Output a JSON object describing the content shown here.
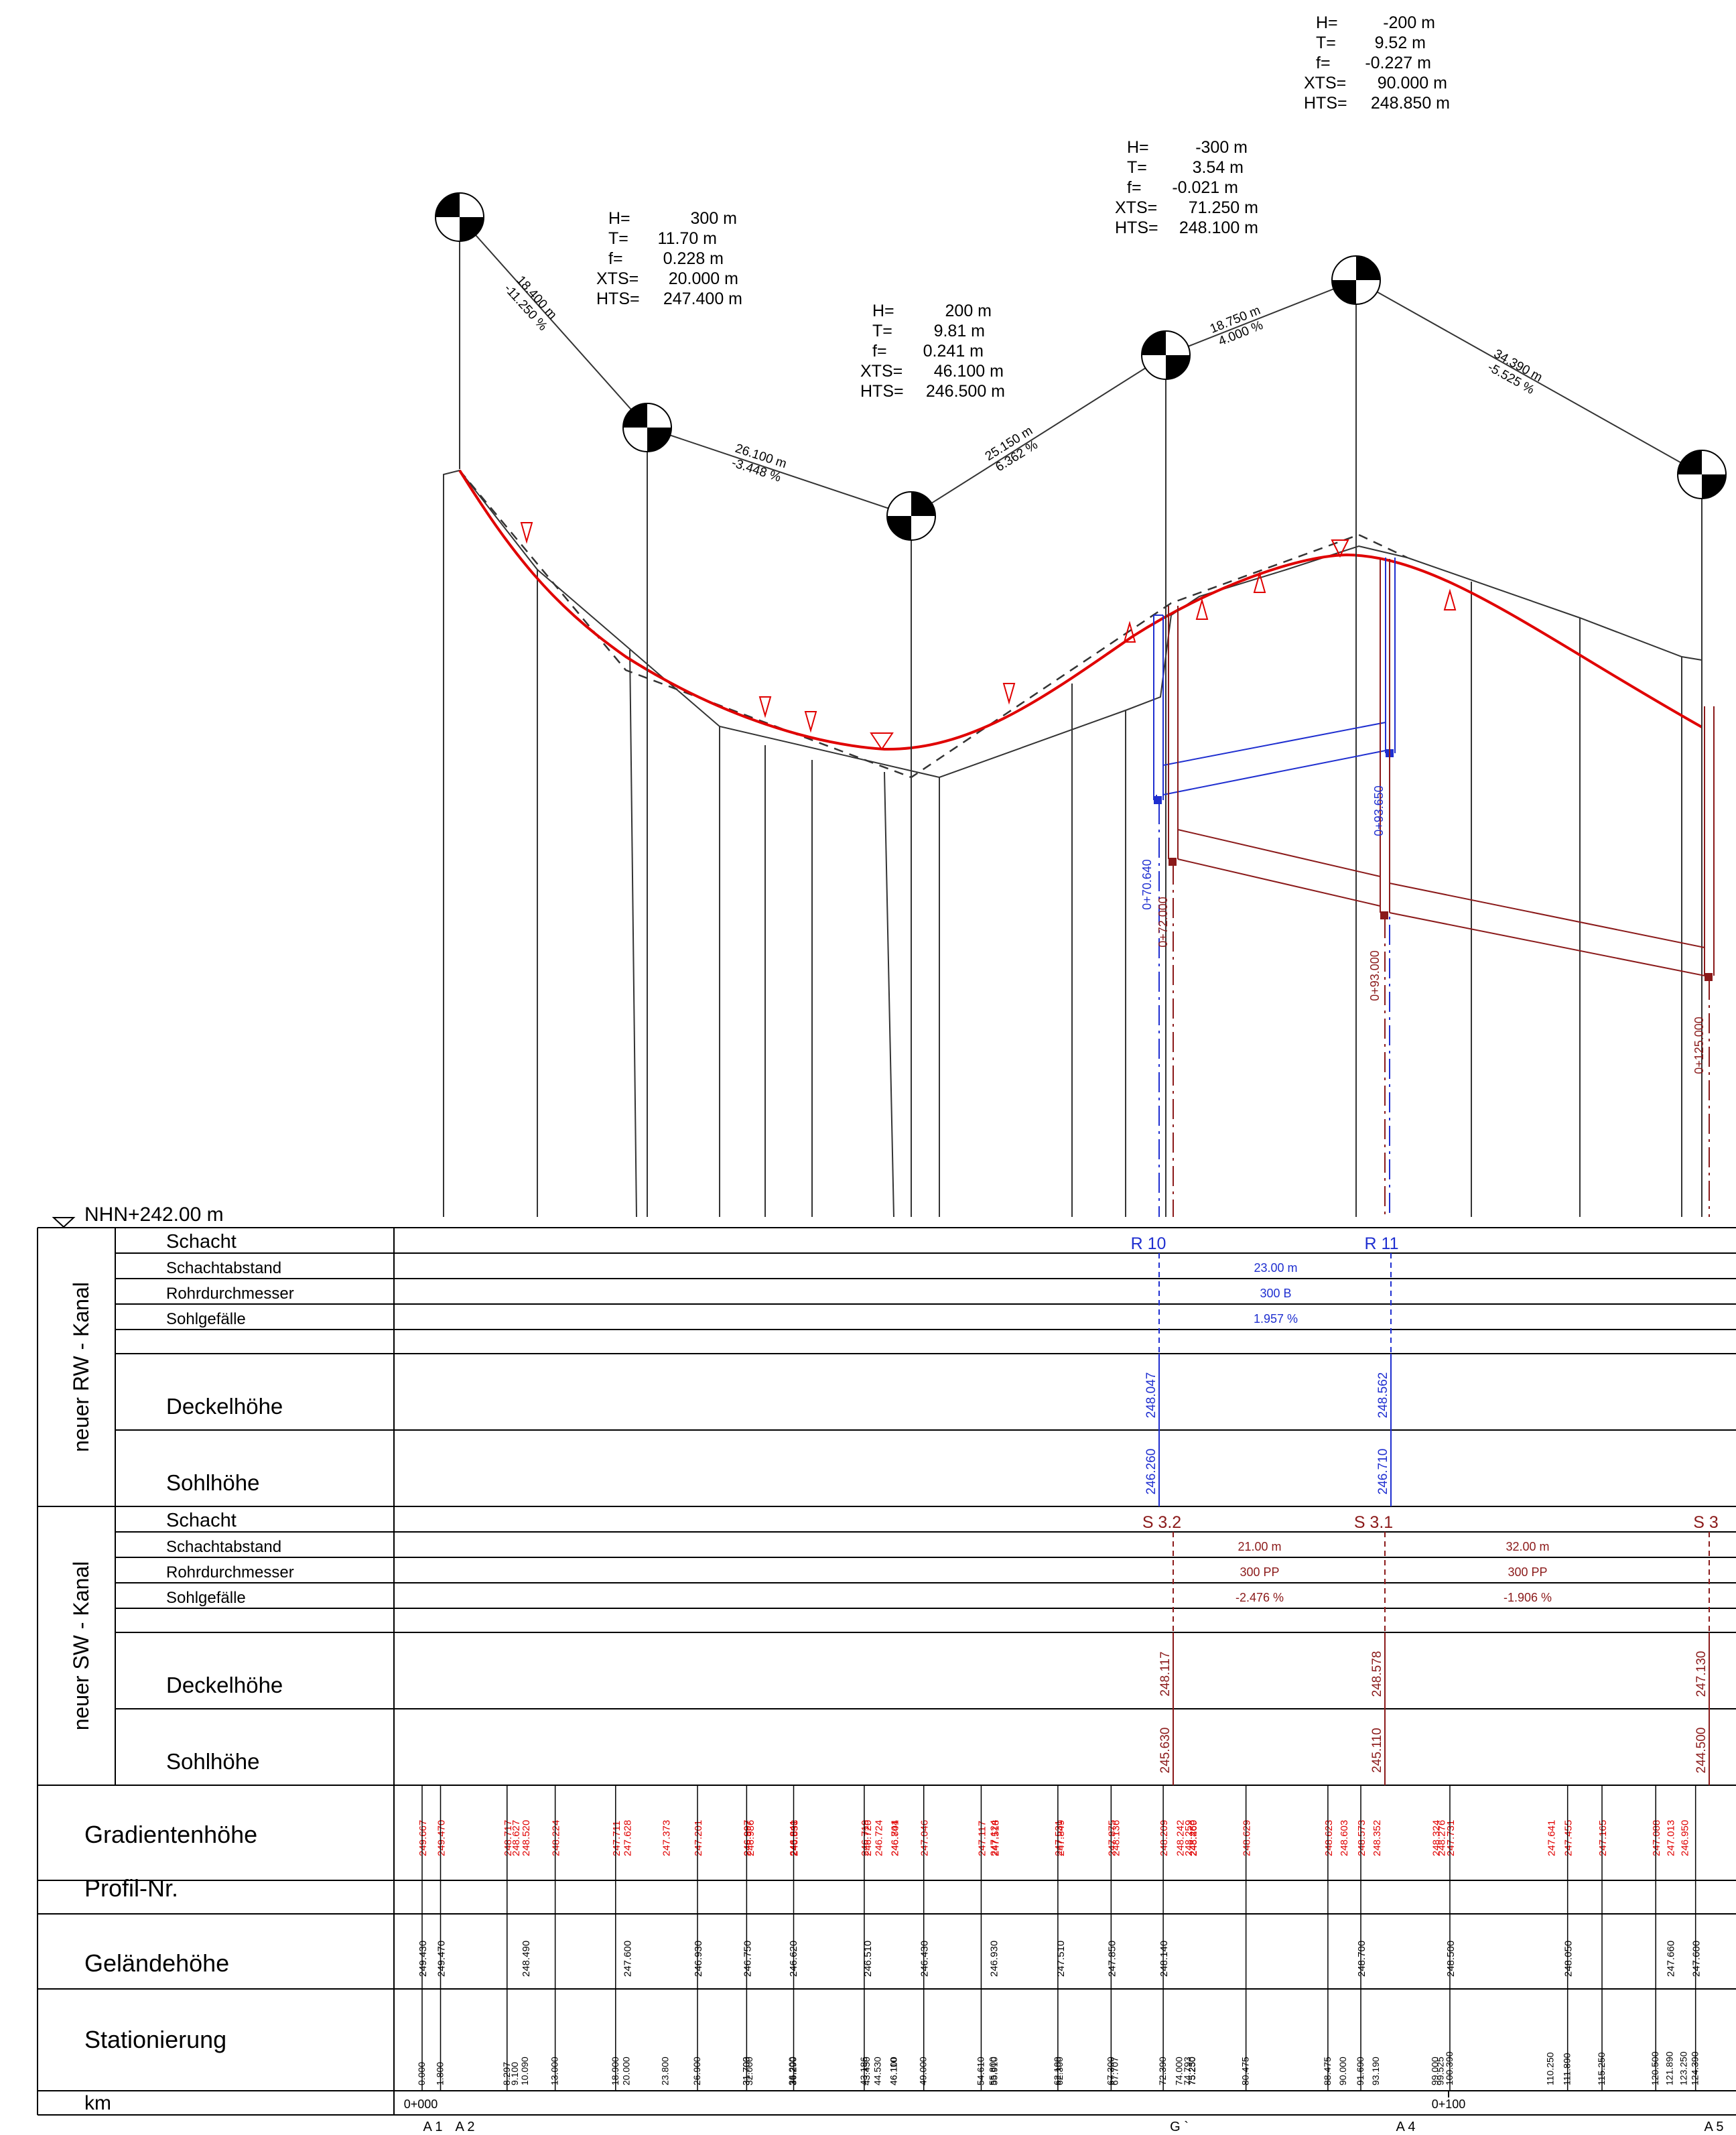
{
  "datum_label": "NHN+242.00 m",
  "curves": [
    {
      "lines": [
        {
          "k": "H=",
          "v": "300 m"
        },
        {
          "k": "T=",
          "v": "11.70 m"
        },
        {
          "k": "f=",
          "v": "0.228 m"
        },
        {
          "k": "XTS=",
          "v": "20.000 m"
        },
        {
          "k": "HTS=",
          "v": "247.400 m"
        }
      ]
    },
    {
      "lines": [
        {
          "k": "H=",
          "v": "200 m"
        },
        {
          "k": "T=",
          "v": "9.81 m"
        },
        {
          "k": "f=",
          "v": "0.241 m"
        },
        {
          "k": "XTS=",
          "v": "46.100 m"
        },
        {
          "k": "HTS=",
          "v": "246.500 m"
        }
      ]
    },
    {
      "lines": [
        {
          "k": "H=",
          "v": "-300 m"
        },
        {
          "k": "T=",
          "v": "3.54 m"
        },
        {
          "k": "f=",
          "v": "-0.021 m"
        },
        {
          "k": "XTS=",
          "v": "71.250 m"
        },
        {
          "k": "HTS=",
          "v": "248.100 m"
        }
      ]
    },
    {
      "lines": [
        {
          "k": "H=",
          "v": "-200 m"
        },
        {
          "k": "T=",
          "v": "9.52 m"
        },
        {
          "k": "f=",
          "v": "-0.227 m"
        },
        {
          "k": "XTS=",
          "v": "90.000 m"
        },
        {
          "k": "HTS=",
          "v": "248.850 m"
        }
      ]
    }
  ],
  "tangents": [
    {
      "length": "18.400 m",
      "slope": "-11.250 %"
    },
    {
      "length": "26.100 m",
      "slope": "-3.448 %"
    },
    {
      "length": "25.150 m",
      "slope": "6.362 %"
    },
    {
      "length": "18.750 m",
      "slope": "4.000 %"
    },
    {
      "length": "34.390 m",
      "slope": "-5.525 %"
    }
  ],
  "pipe_stations": {
    "rw": [
      "0+70.640",
      "0+93.650"
    ],
    "sw": [
      "0+72.000",
      "0+93.000",
      "0+125.000"
    ]
  },
  "rw": {
    "group_label": "neuer RW - Kanal",
    "row_labels": {
      "schacht": "Schacht",
      "abstand": "Schachtabstand",
      "durchmesser": "Rohrdurchmesser",
      "gefaelle": "Sohlgefälle",
      "deckel": "Deckelhöhe",
      "sohle": "Sohlhöhe"
    },
    "manholes": [
      {
        "name": "R 10",
        "deckel": "248.047",
        "sohle": "246.260"
      },
      {
        "name": "R 11",
        "deckel": "248.562",
        "sohle": "246.710"
      }
    ],
    "segments": [
      {
        "abstand": "23.00 m",
        "durchmesser": "300 B",
        "gefaelle": "1.957 %"
      }
    ]
  },
  "sw": {
    "group_label": "neuer SW - Kanal",
    "row_labels": {
      "schacht": "Schacht",
      "abstand": "Schachtabstand",
      "durchmesser": "Rohrdurchmesser",
      "gefaelle": "Sohlgefälle",
      "deckel": "Deckelhöhe",
      "sohle": "Sohlhöhe"
    },
    "manholes": [
      {
        "name": "S 3.2",
        "deckel": "248.117",
        "sohle": "245.630"
      },
      {
        "name": "S 3.1",
        "deckel": "248.578",
        "sohle": "245.110"
      },
      {
        "name": "S 3",
        "deckel": "247.130",
        "sohle": "244.500"
      }
    ],
    "segments": [
      {
        "abstand": "21.00 m",
        "durchmesser": "300 PP",
        "gefaelle": "-2.476 %"
      },
      {
        "abstand": "32.00 m",
        "durchmesser": "300 PP",
        "gefaelle": "-1.906 %"
      }
    ]
  },
  "bottom_labels": {
    "gradient": "Gradientenhöhe",
    "profil": "Profil-Nr.",
    "gelaende": "Geländehöhe",
    "station": "Stationierung",
    "km": "km"
  },
  "gradient_values": [
    "249.667",
    "249.470",
    "248.717",
    "248.627",
    "248.520",
    "248.224",
    "247.711",
    "247.628",
    "247.373",
    "247.201",
    "246.997",
    "246.997",
    "246.986",
    "246.841",
    "246.838",
    "246.719",
    "246.720",
    "246.724",
    "246.741",
    "246.804",
    "247.046",
    "247.117",
    "247.124",
    "247.518",
    "247.531",
    "247.849",
    "247.875",
    "248.136",
    "248.209",
    "248.242",
    "248.259",
    "248.260",
    "248.469",
    "248.629",
    "248.623",
    "248.603",
    "248.573",
    "248.352",
    "248.324",
    "248.276",
    "247.731",
    "247.641",
    "247.455",
    "247.165",
    "247.088",
    "247.013",
    "246.950"
  ],
  "gelaende_values": [
    "249.430",
    "249.470",
    "248.490",
    "247.600",
    "246.930",
    "246.750",
    "246.620",
    "246.510",
    "246.430",
    "246.930",
    "247.510",
    "247.850",
    "248.140",
    "248.700",
    "248.500",
    "248.050",
    "247.660",
    "247.600"
  ],
  "station_values": [
    "0.000",
    "1.800",
    "8.297",
    "9.100",
    "10.090",
    "13.000",
    "18.900",
    "20.000",
    "23.800",
    "26.900",
    "31.700",
    "31.703",
    "32.000",
    "36.200",
    "36.290",
    "43.186",
    "43.450",
    "44.530",
    "46.100",
    "46.110",
    "49.000",
    "54.610",
    "55.800",
    "55.910",
    "62.100",
    "62.300",
    "67.300",
    "67.707",
    "72.390",
    "74.000",
    "74.793",
    "75.230",
    "75.250",
    "80.475",
    "88.475",
    "90.000",
    "91.690",
    "93.190",
    "99.000",
    "99.525",
    "100.390",
    "110.250",
    "111.890",
    "115.250",
    "120.500",
    "121.890",
    "123.250",
    "124.390"
  ],
  "km_labels": [
    "0+000",
    "0+100"
  ],
  "profile_markers": [
    "A 1",
    "A 2",
    "G `",
    "A 4",
    "A 5"
  ]
}
